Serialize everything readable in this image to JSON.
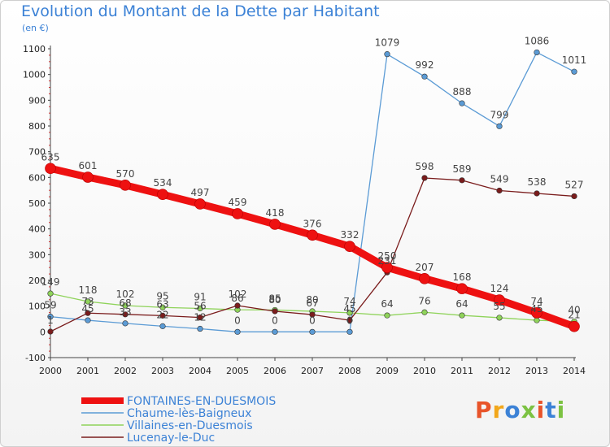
{
  "title": "Evolution du Montant de la Dette par Habitant",
  "unit": "(en €)",
  "logo": {
    "text": "Proxiti",
    "colors": [
      "#e8542a",
      "#f2a71b",
      "#3c82d6",
      "#7cc242",
      "#e8542a",
      "#3c82d6",
      "#7cc242"
    ]
  },
  "chart_data": {
    "type": "line",
    "x": [
      2000,
      2001,
      2002,
      2003,
      2004,
      2005,
      2006,
      2007,
      2008,
      2009,
      2010,
      2011,
      2012,
      2013,
      2014
    ],
    "ylim": [
      -100,
      1100
    ],
    "yticks": [
      -100,
      0,
      100,
      200,
      300,
      400,
      500,
      600,
      700,
      800,
      900,
      1000,
      1100
    ],
    "grid": false,
    "legend_position": "bottom-left",
    "series": [
      {
        "name": "FONTAINES-EN-DUESMOIS",
        "color": "#ee1111",
        "values": [
          635,
          601,
          570,
          534,
          497,
          459,
          418,
          376,
          332,
          250,
          207,
          168,
          124,
          74,
          21
        ],
        "labels": [
          "635",
          "601",
          "570",
          "534",
          "497",
          "459",
          "418",
          "376",
          "332",
          "250",
          "207",
          "168",
          "124",
          "74",
          "21"
        ]
      },
      {
        "name": "Chaume-lès-Baigneux",
        "color": "#5b9bd5",
        "values": [
          59,
          45,
          33,
          22,
          12,
          0,
          0,
          0,
          0,
          1079,
          992,
          888,
          799,
          1086,
          1011
        ],
        "labels": [
          "59",
          "45",
          "33",
          "22",
          "12",
          "0",
          "0",
          "0",
          "0",
          "1079",
          "992",
          "888",
          "799",
          "1086",
          "1011"
        ]
      },
      {
        "name": "Villaines-en-Duesmois",
        "color": "#8fd35a",
        "values": [
          149,
          118,
          102,
          95,
          91,
          86,
          85,
          80,
          74,
          64,
          76,
          64,
          55,
          45,
          40
        ],
        "labels": [
          "149",
          "118",
          "102",
          "95",
          "91",
          "86",
          "85",
          "80",
          "74",
          "64",
          "76",
          "64",
          "55",
          "45",
          "40"
        ]
      },
      {
        "name": "Lucenay-le-Duc",
        "color": "#7a1c1c",
        "values": [
          1,
          73,
          68,
          63,
          56,
          102,
          80,
          67,
          45,
          231,
          598,
          589,
          549,
          538,
          527
        ],
        "labels": [
          "1",
          "73",
          "68",
          "63",
          "56",
          "102",
          "80",
          "67",
          "45",
          "231",
          "598",
          "589",
          "549",
          "538",
          "527"
        ]
      }
    ]
  }
}
